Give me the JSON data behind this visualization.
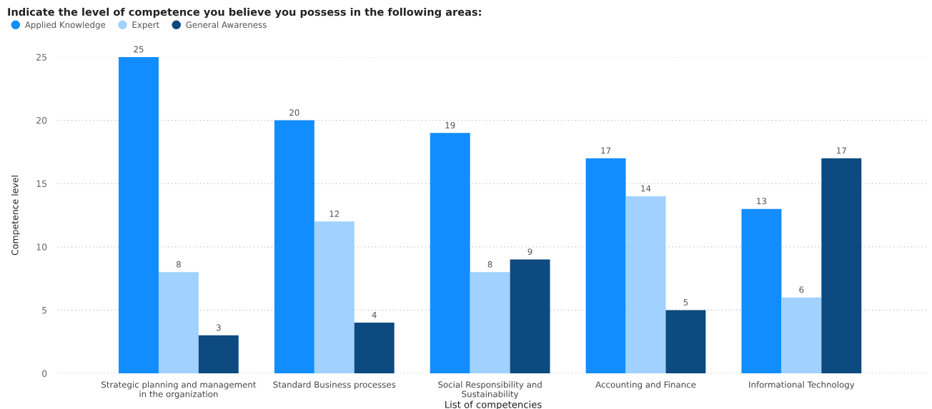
{
  "chart_data": {
    "type": "bar",
    "title": "Indicate the level of competence you believe you possess in the following areas:",
    "xlabel": "List of competencies",
    "ylabel": "Competence level",
    "categories": [
      "Strategic planning and management\nin the organization",
      "Standard Business processes",
      "Social Responsibility and\nSustainability",
      "Accounting and Finance",
      "Informational Technology"
    ],
    "series": [
      {
        "name": "Applied Knowledge",
        "color": "#118dff",
        "values": [
          25,
          20,
          19,
          17,
          13
        ]
      },
      {
        "name": "Expert",
        "color": "#a0d1ff",
        "values": [
          8,
          12,
          8,
          14,
          6
        ]
      },
      {
        "name": "General Awareness",
        "color": "#0c4a80",
        "values": [
          3,
          4,
          9,
          5,
          17
        ]
      }
    ],
    "ylim": [
      0,
      25
    ],
    "yticks": [
      0,
      5,
      10,
      15,
      20,
      25
    ],
    "grid": "y",
    "legend": "top left",
    "data_labels": true
  }
}
